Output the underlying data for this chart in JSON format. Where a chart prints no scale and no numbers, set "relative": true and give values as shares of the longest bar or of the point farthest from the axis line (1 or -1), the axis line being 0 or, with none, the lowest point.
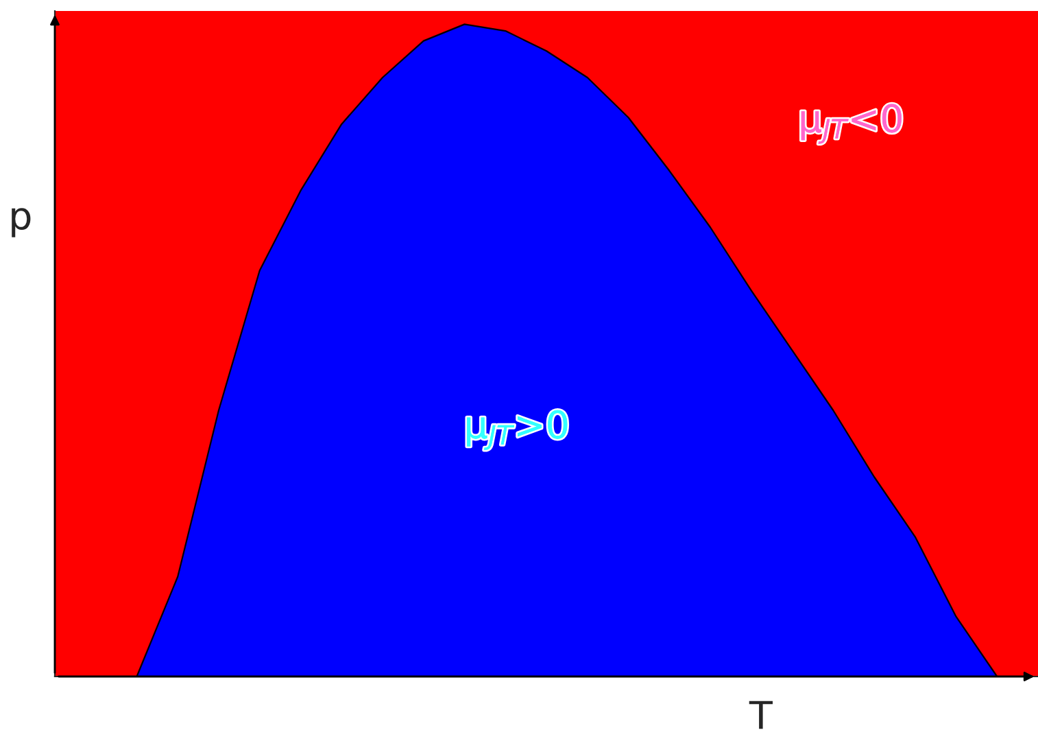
{
  "chart_data": {
    "type": "area",
    "stacked": true,
    "relative": true,
    "xlabel": "T",
    "ylabel": "p",
    "categories": [
      null,
      null,
      null,
      null,
      null,
      null,
      null,
      null,
      null,
      null,
      null,
      null,
      null,
      null,
      null,
      null,
      null,
      null,
      null,
      null,
      null,
      null,
      null,
      null,
      null
    ],
    "series": [
      {
        "color": "#0000ff",
        "values": [
          0,
          0,
          0,
          0.15,
          0.4,
          0.61,
          0.73,
          0.83,
          0.9,
          0.955,
          0.98,
          0.97,
          0.94,
          0.9,
          0.84,
          0.76,
          0.675,
          0.58,
          0.49,
          0.4,
          0.3,
          0.21,
          0.09,
          0,
          0
        ]
      },
      {
        "color": "#ff0000",
        "values": [
          1,
          1,
          1,
          0.85,
          0.6,
          0.39,
          0.27,
          0.17,
          0.1,
          0.045,
          0.02,
          0.03,
          0.06,
          0.1,
          0.16,
          0.24,
          0.325,
          0.42,
          0.51,
          0.6,
          0.7,
          0.79,
          0.91,
          1,
          1
        ]
      }
    ],
    "annotations": [
      "μ$_{JT}$<0",
      "μ$_{JT}$>0"
    ]
  }
}
